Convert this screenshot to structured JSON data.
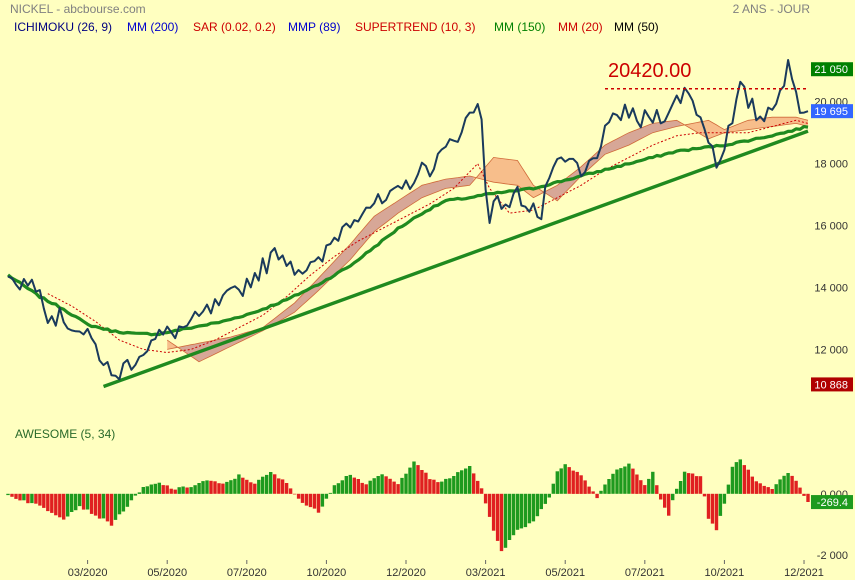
{
  "header": {
    "symbol": "NICKEL - abcbourse.com",
    "period": "2 ANS - JOUR"
  },
  "indicators": [
    {
      "label": "ICHIMOKU (26, 9)",
      "color": "#000080"
    },
    {
      "label": "MM (200)",
      "color": "#0000cc"
    },
    {
      "label": "SAR (0.02, 0.2)",
      "color": "#cc0000"
    },
    {
      "label": "MMP (89)",
      "color": "#0000cc"
    },
    {
      "label": "SUPERTREND (10, 3)",
      "color": "#cc0000"
    },
    {
      "label": "MM (150)",
      "color": "#008000"
    },
    {
      "label": "MM (20)",
      "color": "#cc0000"
    },
    {
      "label": "MM (50)",
      "color": "#000000"
    }
  ],
  "annotation": {
    "level_label": "20420.00",
    "level": 20420,
    "color": "#cc0000"
  },
  "price_tags": {
    "high": {
      "label": "21 050",
      "value": 21050,
      "color": "#008000"
    },
    "last": {
      "label": "19 695",
      "value": 19695,
      "color": "#3366ff"
    },
    "low": {
      "label": "10 868",
      "value": 10868,
      "color": "#b00000"
    }
  },
  "oscillator": {
    "label": "AWESOME (5, 34)",
    "last_label": "-269.4",
    "last_value": -269.4
  },
  "chart_data": [
    {
      "type": "line",
      "title": "NICKEL",
      "y_ticks": [
        "20 000",
        "18 000",
        "16 000",
        "14 000",
        "12 000"
      ],
      "y_tick_values": [
        20000,
        18000,
        16000,
        14000,
        12000
      ],
      "ylim": [
        10300,
        21800
      ],
      "x_ticks": [
        "03/2020",
        "05/2020",
        "07/2020",
        "10/2020",
        "12/2020",
        "03/2021",
        "05/2021",
        "07/2021",
        "10/2021",
        "12/2021"
      ],
      "x_tick_index": [
        20,
        40,
        60,
        80,
        100,
        120,
        140,
        160,
        180,
        200
      ],
      "n_points": 202,
      "price_knots": [
        [
          0,
          14350
        ],
        [
          5,
          14100
        ],
        [
          8,
          14200
        ],
        [
          10,
          13100
        ],
        [
          14,
          13000
        ],
        [
          18,
          12600
        ],
        [
          22,
          12100
        ],
        [
          25,
          11400
        ],
        [
          26,
          11000
        ],
        [
          28,
          11300
        ],
        [
          30,
          11500
        ],
        [
          34,
          12000
        ],
        [
          38,
          12400
        ],
        [
          42,
          12600
        ],
        [
          46,
          12800
        ],
        [
          50,
          13200
        ],
        [
          54,
          13500
        ],
        [
          58,
          13900
        ],
        [
          62,
          14400
        ],
        [
          66,
          14900
        ],
        [
          68,
          15200
        ],
        [
          72,
          14700
        ],
        [
          75,
          14600
        ],
        [
          78,
          14700
        ],
        [
          82,
          15600
        ],
        [
          86,
          16200
        ],
        [
          90,
          16700
        ],
        [
          94,
          16700
        ],
        [
          98,
          17000
        ],
        [
          102,
          17600
        ],
        [
          106,
          17900
        ],
        [
          110,
          18400
        ],
        [
          114,
          19200
        ],
        [
          118,
          19850
        ],
        [
          119,
          19600
        ],
        [
          120,
          17300
        ],
        [
          121,
          16400
        ],
        [
          124,
          16800
        ],
        [
          126,
          16700
        ],
        [
          128,
          17000
        ],
        [
          132,
          16600
        ],
        [
          134,
          16200
        ],
        [
          136,
          17700
        ],
        [
          139,
          17900
        ],
        [
          142,
          18100
        ],
        [
          144,
          17500
        ],
        [
          146,
          17900
        ],
        [
          149,
          18700
        ],
        [
          152,
          19300
        ],
        [
          155,
          19800
        ],
        [
          158,
          19300
        ],
        [
          161,
          19500
        ],
        [
          164,
          19600
        ],
        [
          167,
          19800
        ],
        [
          170,
          20400
        ],
        [
          173,
          19800
        ],
        [
          176,
          18900
        ],
        [
          178,
          18000
        ],
        [
          180,
          18700
        ],
        [
          182,
          19300
        ],
        [
          184,
          20400
        ],
        [
          186,
          20000
        ],
        [
          188,
          19600
        ],
        [
          190,
          19500
        ],
        [
          192,
          20000
        ],
        [
          194,
          20400
        ],
        [
          196,
          21050
        ],
        [
          198,
          20200
        ],
        [
          200,
          19650
        ],
        [
          201,
          19695
        ]
      ],
      "ma150_knots": [
        [
          0,
          14400
        ],
        [
          8,
          13700
        ],
        [
          14,
          13300
        ],
        [
          20,
          12800
        ],
        [
          26,
          12600
        ],
        [
          32,
          12500
        ],
        [
          38,
          12500
        ],
        [
          46,
          12700
        ],
        [
          54,
          12900
        ],
        [
          62,
          13200
        ],
        [
          70,
          13600
        ],
        [
          78,
          14100
        ],
        [
          86,
          14700
        ],
        [
          92,
          15300
        ],
        [
          98,
          15900
        ],
        [
          104,
          16400
        ],
        [
          110,
          16800
        ],
        [
          116,
          16900
        ],
        [
          120,
          17000
        ],
        [
          126,
          17100
        ],
        [
          132,
          17200
        ],
        [
          138,
          17400
        ],
        [
          144,
          17600
        ],
        [
          150,
          17800
        ],
        [
          156,
          18000
        ],
        [
          162,
          18200
        ],
        [
          168,
          18400
        ],
        [
          174,
          18500
        ],
        [
          180,
          18600
        ],
        [
          188,
          18800
        ],
        [
          195,
          19000
        ],
        [
          201,
          19200
        ]
      ],
      "trendline": {
        "x": [
          24,
          201
        ],
        "y": [
          10800,
          19050
        ]
      },
      "sar_knots": [
        [
          10,
          13800
        ],
        [
          16,
          13400
        ],
        [
          22,
          12900
        ],
        [
          28,
          12300
        ],
        [
          34,
          12000
        ],
        [
          40,
          11900
        ],
        [
          46,
          12000
        ],
        [
          52,
          12300
        ],
        [
          58,
          12700
        ],
        [
          64,
          13100
        ],
        [
          70,
          13700
        ],
        [
          76,
          14400
        ],
        [
          82,
          15000
        ],
        [
          88,
          15500
        ],
        [
          94,
          15900
        ],
        [
          100,
          16300
        ],
        [
          106,
          16700
        ],
        [
          112,
          17200
        ],
        [
          118,
          18000
        ],
        [
          121,
          17200
        ],
        [
          126,
          16400
        ],
        [
          132,
          16500
        ],
        [
          138,
          16900
        ],
        [
          144,
          17300
        ],
        [
          150,
          17800
        ],
        [
          156,
          18200
        ],
        [
          162,
          18600
        ],
        [
          168,
          18900
        ],
        [
          174,
          19000
        ],
        [
          180,
          19000
        ],
        [
          186,
          19000
        ],
        [
          192,
          19200
        ],
        [
          198,
          19400
        ],
        [
          201,
          19300
        ]
      ],
      "cloud": {
        "a": [
          [
            40,
            12300
          ],
          [
            48,
            11600
          ],
          [
            56,
            12100
          ],
          [
            64,
            12600
          ],
          [
            72,
            13200
          ],
          [
            78,
            13900
          ],
          [
            86,
            14900
          ],
          [
            92,
            15800
          ],
          [
            98,
            16400
          ],
          [
            104,
            16900
          ],
          [
            110,
            17200
          ],
          [
            116,
            17300
          ],
          [
            122,
            18200
          ],
          [
            128,
            18100
          ],
          [
            132,
            17300
          ],
          [
            138,
            16800
          ],
          [
            144,
            17600
          ],
          [
            150,
            18300
          ],
          [
            156,
            18600
          ],
          [
            162,
            19000
          ],
          [
            168,
            19200
          ],
          [
            172,
            19300
          ],
          [
            176,
            19400
          ],
          [
            180,
            19100
          ],
          [
            186,
            19400
          ],
          [
            192,
            19500
          ],
          [
            198,
            19500
          ],
          [
            201,
            19400
          ]
        ],
        "b": [
          [
            40,
            12000
          ],
          [
            48,
            12200
          ],
          [
            56,
            12400
          ],
          [
            64,
            12700
          ],
          [
            72,
            13500
          ],
          [
            78,
            14300
          ],
          [
            86,
            15400
          ],
          [
            92,
            16300
          ],
          [
            98,
            16800
          ],
          [
            104,
            17300
          ],
          [
            110,
            17500
          ],
          [
            116,
            17600
          ],
          [
            122,
            17400
          ],
          [
            128,
            17300
          ],
          [
            132,
            16900
          ],
          [
            138,
            17300
          ],
          [
            144,
            17900
          ],
          [
            150,
            18600
          ],
          [
            156,
            19000
          ],
          [
            162,
            19300
          ],
          [
            168,
            19400
          ],
          [
            172,
            19100
          ],
          [
            176,
            18800
          ],
          [
            180,
            19000
          ],
          [
            186,
            19100
          ],
          [
            192,
            19200
          ],
          [
            198,
            19300
          ],
          [
            201,
            19200
          ]
        ]
      }
    },
    {
      "type": "bar",
      "title": "AWESOME (5, 34)",
      "y_ticks": [
        "0.000",
        "-2 000"
      ],
      "y_tick_values": [
        0,
        -2000
      ],
      "ylim": [
        -2100,
        1500
      ],
      "ao_knots": [
        [
          0,
          -50
        ],
        [
          8,
          -400
        ],
        [
          14,
          -800
        ],
        [
          18,
          -400
        ],
        [
          22,
          -700
        ],
        [
          26,
          -1000
        ],
        [
          30,
          -400
        ],
        [
          34,
          200
        ],
        [
          38,
          350
        ],
        [
          42,
          150
        ],
        [
          46,
          250
        ],
        [
          50,
          450
        ],
        [
          54,
          300
        ],
        [
          58,
          600
        ],
        [
          62,
          350
        ],
        [
          66,
          700
        ],
        [
          70,
          350
        ],
        [
          74,
          -300
        ],
        [
          78,
          -600
        ],
        [
          82,
          300
        ],
        [
          86,
          650
        ],
        [
          90,
          300
        ],
        [
          94,
          650
        ],
        [
          98,
          300
        ],
        [
          102,
          1100
        ],
        [
          106,
          500
        ],
        [
          108,
          350
        ],
        [
          112,
          600
        ],
        [
          116,
          900
        ],
        [
          119,
          200
        ],
        [
          121,
          -800
        ],
        [
          124,
          -1900
        ],
        [
          128,
          -1200
        ],
        [
          132,
          -900
        ],
        [
          136,
          -100
        ],
        [
          138,
          700
        ],
        [
          140,
          1000
        ],
        [
          144,
          600
        ],
        [
          148,
          -100
        ],
        [
          152,
          700
        ],
        [
          156,
          1000
        ],
        [
          160,
          300
        ],
        [
          162,
          700
        ],
        [
          164,
          -200
        ],
        [
          166,
          -700
        ],
        [
          168,
          200
        ],
        [
          170,
          700
        ],
        [
          174,
          600
        ],
        [
          176,
          -800
        ],
        [
          178,
          -1200
        ],
        [
          180,
          -300
        ],
        [
          182,
          900
        ],
        [
          184,
          1100
        ],
        [
          188,
          400
        ],
        [
          192,
          200
        ],
        [
          196,
          700
        ],
        [
          198,
          400
        ],
        [
          201,
          -269.4
        ]
      ]
    }
  ]
}
